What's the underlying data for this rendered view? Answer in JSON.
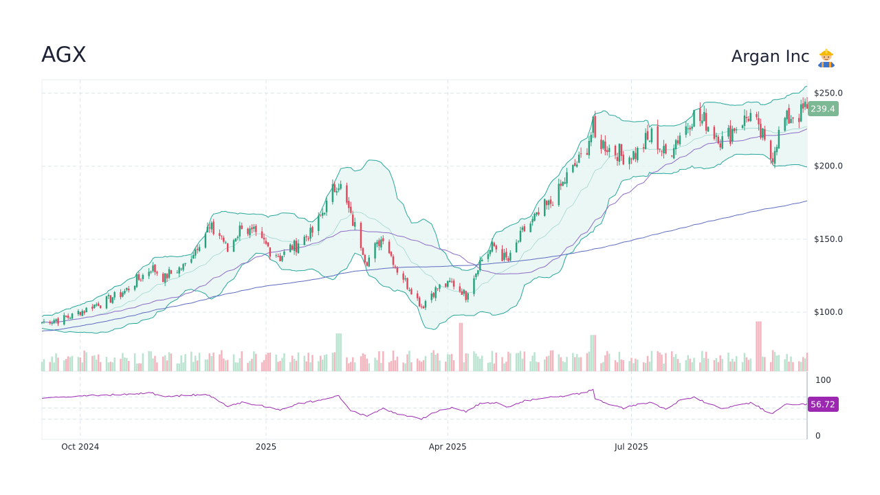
{
  "header": {
    "ticker": "AGX",
    "company": "Argan Inc",
    "company_icon": "construction-worker-icon"
  },
  "colors": {
    "up": "#26a17b",
    "down": "#e0475c",
    "band_fill": "#e4f4f2",
    "band_line": "#26a69a",
    "ma_short": "#8c6bc8",
    "ma_long": "#5c6bc0",
    "rsi": "#9c27b0",
    "last_price_badge": "#7cb894",
    "rsi_badge": "#9c27b0"
  },
  "chart_data": {
    "type": "candlestick",
    "price_axis": {
      "ticks": [
        {
          "value": 100,
          "label": "$100.0"
        },
        {
          "value": 150,
          "label": "$150.0"
        },
        {
          "value": 200,
          "label": "$200.0"
        },
        {
          "value": 250,
          "label": "$250.0"
        }
      ],
      "ylim": [
        59.5,
        259.2
      ]
    },
    "last_price": {
      "value": 239.4,
      "label": "239.4"
    },
    "x_axis": {
      "start": "2024-09-12",
      "end": "2025-09-26",
      "ticks": [
        {
          "date": "2024-10-01",
          "label": "Oct 2024"
        },
        {
          "date": "2025-01-01",
          "label": "2025"
        },
        {
          "date": "2025-04-01",
          "label": "Apr 2025"
        },
        {
          "date": "2025-07-01",
          "label": "Jul 2025"
        }
      ]
    },
    "close_path": [
      [
        "2024-09-12",
        93
      ],
      [
        "2024-09-26",
        97
      ],
      [
        "2024-10-10",
        106
      ],
      [
        "2024-10-24",
        115
      ],
      [
        "2024-11-05",
        130
      ],
      [
        "2024-11-12",
        124
      ],
      [
        "2024-11-22",
        132
      ],
      [
        "2024-12-03",
        157
      ],
      [
        "2024-12-10",
        152
      ],
      [
        "2024-12-13",
        142
      ],
      [
        "2024-12-20",
        160
      ],
      [
        "2024-12-30",
        148
      ],
      [
        "2025-01-08",
        138
      ],
      [
        "2025-01-17",
        148
      ],
      [
        "2025-01-24",
        155
      ],
      [
        "2025-02-06",
        190
      ],
      [
        "2025-02-12",
        165
      ],
      [
        "2025-02-20",
        135
      ],
      [
        "2025-02-28",
        152
      ],
      [
        "2025-03-06",
        132
      ],
      [
        "2025-03-14",
        115
      ],
      [
        "2025-03-19",
        104
      ],
      [
        "2025-03-25",
        115
      ],
      [
        "2025-04-03",
        120
      ],
      [
        "2025-04-10",
        112
      ],
      [
        "2025-04-17",
        135
      ],
      [
        "2025-04-24",
        145
      ],
      [
        "2025-05-01",
        135
      ],
      [
        "2025-05-08",
        155
      ],
      [
        "2025-05-15",
        165
      ],
      [
        "2025-05-22",
        175
      ],
      [
        "2025-05-29",
        190
      ],
      [
        "2025-06-06",
        206
      ],
      [
        "2025-06-12",
        225
      ],
      [
        "2025-06-13",
        218
      ],
      [
        "2025-06-20",
        212
      ],
      [
        "2025-06-27",
        206
      ],
      [
        "2025-07-04",
        210
      ],
      [
        "2025-07-11",
        220
      ],
      [
        "2025-07-18",
        208
      ],
      [
        "2025-07-25",
        222
      ],
      [
        "2025-08-01",
        234
      ],
      [
        "2025-08-08",
        228
      ],
      [
        "2025-08-15",
        218
      ],
      [
        "2025-08-22",
        228
      ],
      [
        "2025-08-29",
        235
      ],
      [
        "2025-09-04",
        218
      ],
      [
        "2025-09-08",
        206
      ],
      [
        "2025-09-15",
        232
      ],
      [
        "2025-09-26",
        239.4
      ]
    ],
    "rsi": {
      "axis_ticks": [
        {
          "value": 0,
          "label": "0"
        },
        {
          "value": 100,
          "label": "100"
        }
      ],
      "guide_levels": [
        30,
        50,
        70
      ],
      "last_value": {
        "value": 56.72,
        "label": "56.72"
      },
      "points": [
        [
          "2024-09-12",
          68
        ],
        [
          "2024-09-26",
          70
        ],
        [
          "2024-10-10",
          73
        ],
        [
          "2024-10-24",
          74
        ],
        [
          "2024-11-05",
          77
        ],
        [
          "2024-11-12",
          70
        ],
        [
          "2024-11-22",
          73
        ],
        [
          "2024-12-03",
          74
        ],
        [
          "2024-12-10",
          60
        ],
        [
          "2024-12-13",
          52
        ],
        [
          "2024-12-20",
          60
        ],
        [
          "2024-12-30",
          54
        ],
        [
          "2025-01-08",
          46
        ],
        [
          "2025-01-17",
          58
        ],
        [
          "2025-01-24",
          62
        ],
        [
          "2025-02-06",
          72
        ],
        [
          "2025-02-12",
          45
        ],
        [
          "2025-02-20",
          35
        ],
        [
          "2025-02-28",
          50
        ],
        [
          "2025-03-06",
          40
        ],
        [
          "2025-03-14",
          34
        ],
        [
          "2025-03-19",
          30
        ],
        [
          "2025-03-25",
          42
        ],
        [
          "2025-04-03",
          50
        ],
        [
          "2025-04-10",
          44
        ],
        [
          "2025-04-17",
          58
        ],
        [
          "2025-04-24",
          60
        ],
        [
          "2025-05-01",
          52
        ],
        [
          "2025-05-08",
          62
        ],
        [
          "2025-05-15",
          66
        ],
        [
          "2025-05-22",
          70
        ],
        [
          "2025-05-29",
          72
        ],
        [
          "2025-06-06",
          76
        ],
        [
          "2025-06-12",
          84
        ],
        [
          "2025-06-13",
          68
        ],
        [
          "2025-06-20",
          56
        ],
        [
          "2025-06-27",
          50
        ],
        [
          "2025-07-04",
          56
        ],
        [
          "2025-07-11",
          60
        ],
        [
          "2025-07-18",
          48
        ],
        [
          "2025-07-25",
          64
        ],
        [
          "2025-08-01",
          69
        ],
        [
          "2025-08-08",
          58
        ],
        [
          "2025-08-15",
          48
        ],
        [
          "2025-08-22",
          56
        ],
        [
          "2025-08-29",
          59
        ],
        [
          "2025-09-04",
          48
        ],
        [
          "2025-09-08",
          39
        ],
        [
          "2025-09-15",
          56
        ],
        [
          "2025-09-26",
          56.72
        ]
      ]
    },
    "volume": {
      "spikes": [
        [
          "2025-04-07",
          3.2
        ],
        [
          "2025-09-02",
          3.3
        ],
        [
          "2025-06-12",
          2.4
        ],
        [
          "2025-02-06",
          2.5
        ]
      ]
    },
    "overlays": [
      "bollinger-bands-20",
      "sma-50",
      "sma-200"
    ],
    "grid": true,
    "legend": "none"
  }
}
